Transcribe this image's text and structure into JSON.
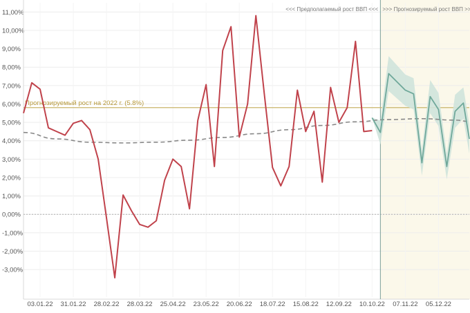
{
  "chart_data": {
    "type": "line",
    "title": "",
    "xlabel": "",
    "ylabel": "",
    "ylim": [
      -4.5,
      11.5
    ],
    "y_ticks": [
      "-3,00%",
      "-2,00%",
      "-1,00%",
      "0,00%",
      "1,00%",
      "2,00%",
      "3,00%",
      "4,00%",
      "5,00%",
      "6,00%",
      "7,00%",
      "8,00%",
      "9,00%",
      "10,00%",
      "11,00%"
    ],
    "x_tick_labels": [
      "03.01.22",
      "31.01.22",
      "28.02.22",
      "28.03.22",
      "25.04.22",
      "23.05.22",
      "20.06.22",
      "18.07.22",
      "15.08.22",
      "12.09.22",
      "10.10.22",
      "07.11.22",
      "05.12.22"
    ],
    "x_range": [
      "2021-12-20",
      "2022-12-31"
    ],
    "grid": true,
    "region_labels": {
      "past": "<<< Предполагаемый рост ВВП <<<",
      "forecast": ">>> Прогнозируемый рост ВВП >>>"
    },
    "forecast_start": "2022-10-17",
    "reference_line": {
      "value": 5.8,
      "label": "Прогнозируемый рост на 2022 г. (5.8%)",
      "color": "#c9b56a"
    },
    "colors": {
      "actual": "#c0424b",
      "forecast": "#6fa89a",
      "forecast_band": "#cfe3dc",
      "trend": "#888888",
      "forecast_bg": "#fbf8ea"
    },
    "series": [
      {
        "role": "actual",
        "dates": [
          "2021-12-20",
          "2021-12-27",
          "2022-01-03",
          "2022-01-10",
          "2022-01-17",
          "2022-01-24",
          "2022-01-31",
          "2022-02-07",
          "2022-02-14",
          "2022-02-21",
          "2022-02-28",
          "2022-03-07",
          "2022-03-14",
          "2022-03-21",
          "2022-03-28",
          "2022-04-04",
          "2022-04-11",
          "2022-04-18",
          "2022-04-25",
          "2022-05-02",
          "2022-05-09",
          "2022-05-16",
          "2022-05-23",
          "2022-05-30",
          "2022-06-06",
          "2022-06-13",
          "2022-06-20",
          "2022-06-27",
          "2022-07-04",
          "2022-07-11",
          "2022-07-18",
          "2022-07-25",
          "2022-08-01",
          "2022-08-08",
          "2022-08-15",
          "2022-08-22",
          "2022-08-29",
          "2022-09-05",
          "2022-09-12",
          "2022-09-19",
          "2022-09-26",
          "2022-10-03",
          "2022-10-10"
        ],
        "values": [
          5.5,
          7.15,
          6.8,
          4.7,
          4.5,
          4.3,
          4.95,
          5.1,
          4.6,
          3.0,
          -0.2,
          -3.45,
          1.05,
          0.2,
          -0.55,
          -0.7,
          -0.35,
          1.85,
          3.0,
          2.6,
          0.3,
          5.1,
          7.05,
          2.6,
          8.9,
          10.2,
          4.2,
          6.0,
          10.8,
          6.6,
          2.55,
          1.55,
          2.6,
          6.75,
          4.5,
          5.6,
          1.75,
          6.9,
          5.0,
          5.8,
          9.4,
          4.5,
          4.55
        ]
      },
      {
        "role": "forecast",
        "dates": [
          "2022-10-10",
          "2022-10-17",
          "2022-10-24",
          "2022-10-31",
          "2022-11-07",
          "2022-11-14",
          "2022-11-21",
          "2022-11-28",
          "2022-12-05",
          "2022-12-12",
          "2022-12-19",
          "2022-12-26",
          "2022-12-31"
        ],
        "values": [
          5.25,
          4.45,
          7.65,
          7.2,
          6.75,
          6.55,
          2.8,
          6.4,
          5.7,
          2.6,
          5.6,
          6.05,
          4.1
        ],
        "band_lower": [
          5.25,
          3.8,
          6.7,
          6.3,
          5.9,
          5.7,
          2.1,
          5.5,
          4.8,
          1.9,
          4.7,
          5.2,
          3.3
        ],
        "band_upper": [
          5.25,
          5.1,
          8.6,
          8.1,
          7.6,
          7.4,
          3.5,
          7.3,
          6.6,
          3.3,
          6.5,
          6.9,
          4.9
        ]
      },
      {
        "role": "trend",
        "dates": [
          "2021-12-20",
          "2022-01-17",
          "2022-02-14",
          "2022-03-14",
          "2022-04-11",
          "2022-05-09",
          "2022-06-06",
          "2022-07-04",
          "2022-08-01",
          "2022-08-29",
          "2022-09-26",
          "2022-10-24",
          "2022-11-21",
          "2022-12-19",
          "2022-12-31"
        ],
        "values": [
          4.45,
          4.1,
          3.92,
          3.88,
          3.92,
          4.03,
          4.18,
          4.38,
          4.6,
          4.83,
          5.03,
          5.15,
          5.2,
          5.12,
          5.05
        ]
      }
    ]
  }
}
